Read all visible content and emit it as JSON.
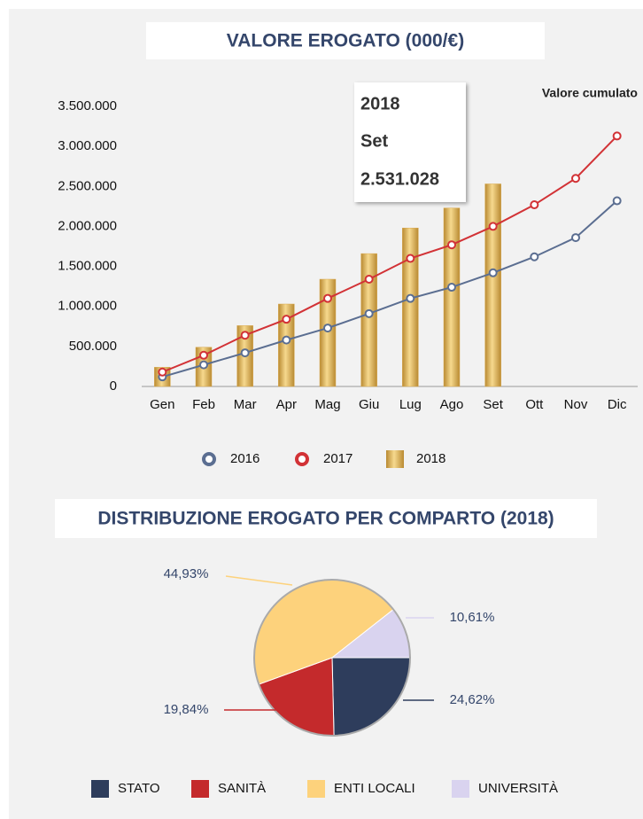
{
  "chart_data": [
    {
      "type": "bar",
      "title": "VALORE EROGATO (000/€)",
      "annotation": "Valore cumulato",
      "categories": [
        "Gen",
        "Feb",
        "Mar",
        "Apr",
        "Mag",
        "Giu",
        "Lug",
        "Ago",
        "Set",
        "Ott",
        "Nov",
        "Dic"
      ],
      "series": [
        {
          "name": "2016",
          "type": "line",
          "color": "#5b6e91",
          "values": [
            120000,
            270000,
            420000,
            580000,
            730000,
            910000,
            1100000,
            1240000,
            1420000,
            1620000,
            1860000,
            2320000
          ]
        },
        {
          "name": "2017",
          "type": "line",
          "color": "#d23236",
          "values": [
            180000,
            390000,
            640000,
            840000,
            1100000,
            1340000,
            1600000,
            1770000,
            2000000,
            2270000,
            2600000,
            3130000
          ]
        },
        {
          "name": "2018",
          "type": "bar",
          "color": "#d9a94e",
          "values": [
            240000,
            490000,
            760000,
            1030000,
            1340000,
            1660000,
            1980000,
            2230000,
            2531028,
            null,
            null,
            null
          ],
          "value_labels": [
            null,
            null,
            null,
            null,
            null,
            null,
            null,
            null,
            "2.531.028",
            null,
            null,
            null
          ]
        }
      ],
      "tooltip": {
        "series": 2,
        "index": 8
      },
      "ylim": [
        0,
        3500000
      ],
      "yticks": [
        0,
        {
          "value": 500000,
          "label": "500.000"
        },
        {
          "value": 1000000,
          "label": "1.000.000"
        },
        {
          "value": 1500000,
          "label": "1.500.000"
        },
        {
          "value": 2000000,
          "label": "2.000.000"
        },
        {
          "value": 2500000,
          "label": "2.500.000"
        },
        {
          "value": 3000000,
          "label": "3.000.000"
        },
        {
          "value": 3500000,
          "label": "3.500.000"
        }
      ],
      "grid": false,
      "legend": "bottom"
    },
    {
      "type": "pie",
      "title": "DISTRIBUZIONE EROGATO PER COMPARTO (2018)",
      "categories": [
        "STATO",
        "SANITÀ",
        "ENTI LOCALI",
        "UNIVERSITÀ"
      ],
      "values": [
        24.62,
        19.84,
        44.93,
        10.61
      ],
      "value_labels": [
        "24,62%",
        "19,84%",
        "44,93%",
        "10,61%"
      ],
      "colors": [
        "#2e3d5c",
        "#c42a2c",
        "#fdd27c",
        "#d9d3ef"
      ],
      "legend": "bottom"
    }
  ]
}
